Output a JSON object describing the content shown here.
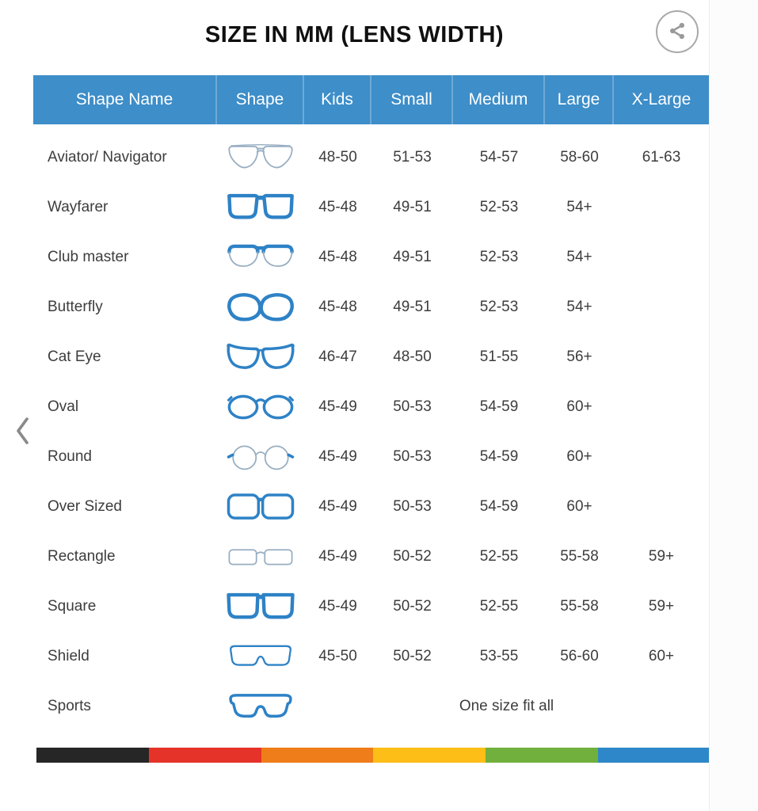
{
  "title": "SIZE IN MM (LENS WIDTH)",
  "table": {
    "columns": [
      "Shape Name",
      "Shape",
      "Kids",
      "Small",
      "Medium",
      "Large",
      "X-Large"
    ],
    "rows": [
      {
        "name": "Aviator/ Navigator",
        "icon": "aviator-glasses-icon",
        "sizes": [
          "48-50",
          "51-53",
          "54-57",
          "58-60",
          "61-63"
        ]
      },
      {
        "name": "Wayfarer",
        "icon": "wayfarer-glasses-icon",
        "sizes": [
          "45-48",
          "49-51",
          "52-53",
          "54+",
          ""
        ]
      },
      {
        "name": "Club master",
        "icon": "clubmaster-glasses-icon",
        "sizes": [
          "45-48",
          "49-51",
          "52-53",
          "54+",
          ""
        ]
      },
      {
        "name": "Butterfly",
        "icon": "butterfly-glasses-icon",
        "sizes": [
          "45-48",
          "49-51",
          "52-53",
          "54+",
          ""
        ]
      },
      {
        "name": "Cat Eye",
        "icon": "cateye-glasses-icon",
        "sizes": [
          "46-47",
          "48-50",
          "51-55",
          "56+",
          ""
        ]
      },
      {
        "name": "Oval",
        "icon": "oval-glasses-icon",
        "sizes": [
          "45-49",
          "50-53",
          "54-59",
          "60+",
          ""
        ]
      },
      {
        "name": "Round",
        "icon": "round-glasses-icon",
        "sizes": [
          "45-49",
          "50-53",
          "54-59",
          "60+",
          ""
        ]
      },
      {
        "name": "Over Sized",
        "icon": "oversized-glasses-icon",
        "sizes": [
          "45-49",
          "50-53",
          "54-59",
          "60+",
          ""
        ]
      },
      {
        "name": "Rectangle",
        "icon": "rectangle-glasses-icon",
        "sizes": [
          "45-49",
          "50-52",
          "52-55",
          "55-58",
          "59+"
        ]
      },
      {
        "name": "Square",
        "icon": "square-glasses-icon",
        "sizes": [
          "45-49",
          "50-52",
          "52-55",
          "55-58",
          "59+"
        ]
      },
      {
        "name": "Shield",
        "icon": "shield-glasses-icon",
        "sizes": [
          "45-50",
          "50-52",
          "53-55",
          "56-60",
          "60+"
        ]
      },
      {
        "name": "Sports",
        "icon": "sports-glasses-icon",
        "sizes_note": "One size fit all"
      }
    ]
  },
  "footer_stripe_colors": [
    "#262626",
    "#e5332a",
    "#ef7d1a",
    "#fcbe17",
    "#72b03e",
    "#2e87c8"
  ],
  "icons": {
    "share": "share-icon",
    "prev": "chevron-left-icon",
    "next": "chevron-right-icon"
  },
  "colors": {
    "header_bg": "#3d8ec9",
    "header_text": "#ffffff",
    "icon_blue": "#2e82c6",
    "icon_light_outline": "#97aec2",
    "chevron_grey": "#8a8a8a"
  }
}
